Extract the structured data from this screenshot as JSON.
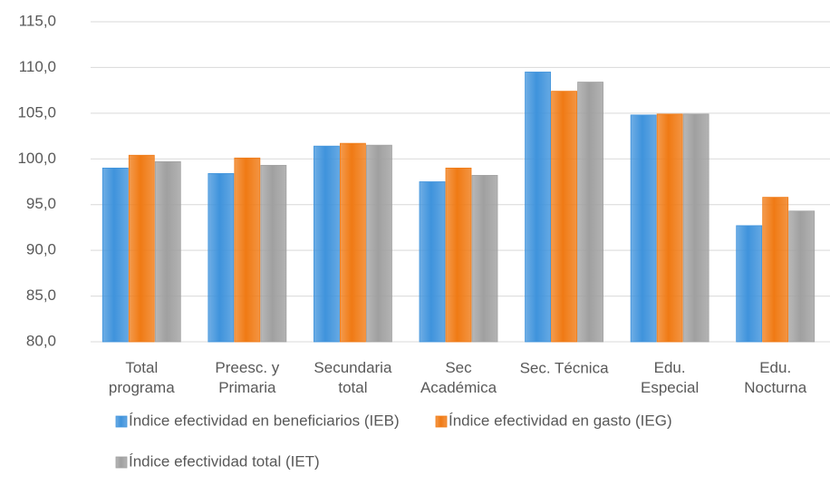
{
  "chart_data": {
    "type": "bar",
    "categories": [
      "Total\nprograma",
      "Preesc. y\nPrimaria",
      "Secundaria\ntotal",
      "Sec\nAcadémica",
      "Sec. Técnica",
      "Edu.\nEspecial",
      "Edu.\nNocturna"
    ],
    "series": [
      {
        "name": "Índice efectividad en beneficiarios (IEB)",
        "color": "#3f93dc",
        "values": [
          99.0,
          98.4,
          101.4,
          97.5,
          109.5,
          104.8,
          92.7
        ]
      },
      {
        "name": "Índice efectividad en gasto (IEG)",
        "color": "#f07a14",
        "values": [
          100.4,
          100.1,
          101.7,
          99.0,
          107.4,
          104.9,
          95.8
        ]
      },
      {
        "name": "Índice efectividad total (IET)",
        "color": "#a0a0a0",
        "values": [
          99.7,
          99.3,
          101.5,
          98.2,
          108.4,
          104.9,
          94.3
        ]
      }
    ],
    "ylim": [
      80,
      115
    ],
    "yticks": [
      {
        "value": 80,
        "label": "80,0"
      },
      {
        "value": 85,
        "label": "85,0"
      },
      {
        "value": 90,
        "label": "90,0"
      },
      {
        "value": 95,
        "label": "95,0"
      },
      {
        "value": 100,
        "label": "100,0"
      },
      {
        "value": 105,
        "label": "105,0"
      },
      {
        "value": 110,
        "label": "110,0"
      },
      {
        "value": 115,
        "label": "115,0"
      }
    ],
    "grid": true,
    "legend": "bottom"
  }
}
